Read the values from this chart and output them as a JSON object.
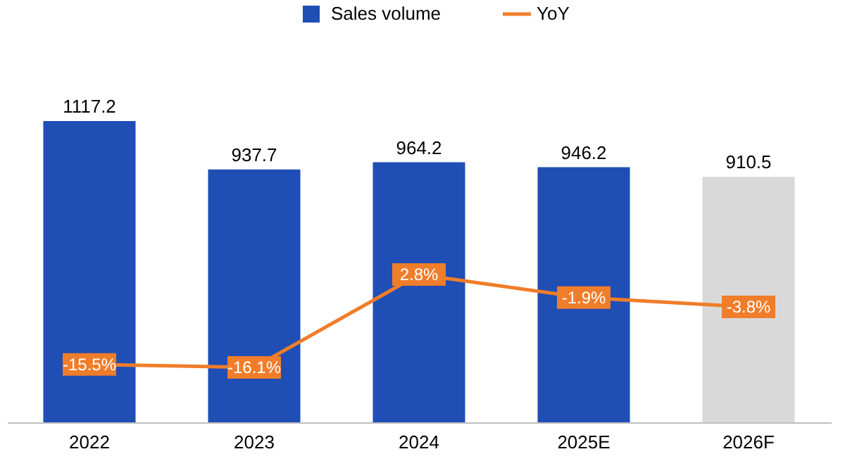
{
  "chart_data": {
    "type": "bar",
    "categories": [
      "2022",
      "2023",
      "2024",
      "2025E",
      "2026F"
    ],
    "series": [
      {
        "name": "Sales volume",
        "color": "#1f4eb4",
        "colors": [
          "#1f4eb4",
          "#1f4eb4",
          "#1f4eb4",
          "#1f4eb4",
          "#d9d9d9"
        ],
        "values": [
          1117.2,
          937.7,
          964.2,
          946.2,
          910.5
        ]
      },
      {
        "name": "YoY",
        "type": "line",
        "axis": "y2",
        "color": "#f07d2a",
        "values": [
          -15.5,
          -16.1,
          2.8,
          -1.9,
          -3.8
        ],
        "value_labels": [
          "-15.5%",
          "-16.1%",
          "2.8%",
          "-1.9%",
          "-3.8%"
        ]
      }
    ],
    "data_labels": true,
    "tick_labels": "x",
    "grid": false,
    "legend": "top",
    "line_style": "solid"
  }
}
